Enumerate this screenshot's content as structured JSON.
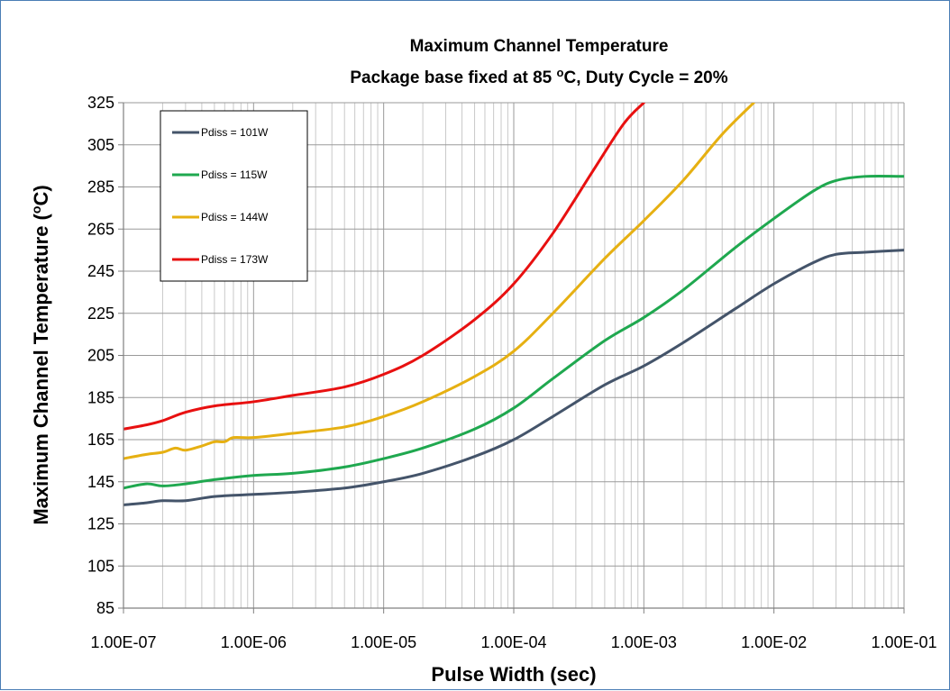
{
  "chart_data": {
    "type": "line",
    "title": "Maximum Channel Temperature",
    "subtitle_parts": {
      "before": "Package base fixed at 85 ",
      "sup": "o",
      "after": "C, Duty Cycle = 20%"
    },
    "xlabel": "Pulse Width (sec)",
    "ylabel_parts": {
      "before": "Maximum Channel Temperature (",
      "sup": "o",
      "after": "C)"
    },
    "x_scale": "log",
    "xlim": [
      1e-07,
      0.1
    ],
    "ylim": [
      85,
      325
    ],
    "x_ticks": [
      "1.00E-07",
      "1.00E-06",
      "1.00E-05",
      "1.00E-04",
      "1.00E-03",
      "1.00E-02",
      "1.00E-01"
    ],
    "x_tick_values": [
      1e-07,
      1e-06,
      1e-05,
      0.0001,
      0.001,
      0.01,
      0.1
    ],
    "y_ticks": [
      85,
      105,
      125,
      145,
      165,
      185,
      205,
      225,
      245,
      265,
      285,
      305,
      325
    ],
    "grid": true,
    "legend_position": "top-left",
    "series": [
      {
        "name": "Pdiss = 101W",
        "color": "#44546a",
        "x": [
          1e-07,
          1.5e-07,
          2e-07,
          3e-07,
          5e-07,
          1e-06,
          2e-06,
          5e-06,
          1e-05,
          2e-05,
          5e-05,
          0.0001,
          0.0002,
          0.0005,
          0.001,
          0.002,
          0.005,
          0.01,
          0.02,
          0.03,
          0.05,
          0.1
        ],
        "y": [
          134,
          135,
          136,
          136,
          138,
          139,
          140,
          142,
          145,
          149,
          157,
          165,
          176,
          191,
          200,
          211,
          227,
          239,
          249,
          253,
          254,
          255
        ]
      },
      {
        "name": "Pdiss = 115W",
        "color": "#1fa84f",
        "x": [
          1e-07,
          1.5e-07,
          2e-07,
          3e-07,
          5e-07,
          1e-06,
          2e-06,
          5e-06,
          1e-05,
          2e-05,
          5e-05,
          0.0001,
          0.0002,
          0.0005,
          0.001,
          0.002,
          0.005,
          0.01,
          0.02,
          0.03,
          0.05,
          0.1
        ],
        "y": [
          142,
          144,
          143,
          144,
          146,
          148,
          149,
          152,
          156,
          161,
          170,
          180,
          194,
          212,
          223,
          236,
          256,
          270,
          283,
          288,
          290,
          290
        ]
      },
      {
        "name": "Pdiss = 144W",
        "color": "#e6b012",
        "x": [
          1e-07,
          1.5e-07,
          2e-07,
          2.5e-07,
          3e-07,
          4e-07,
          5e-07,
          6e-07,
          7e-07,
          1e-06,
          2e-06,
          5e-06,
          1e-05,
          2e-05,
          5e-05,
          0.0001,
          0.0002,
          0.0005,
          0.001,
          0.002,
          0.004,
          0.007
        ],
        "y": [
          156,
          158,
          159,
          161,
          160,
          162,
          164,
          164,
          166,
          166,
          168,
          171,
          176,
          183,
          195,
          207,
          225,
          251,
          269,
          288,
          310,
          325
        ]
      },
      {
        "name": "Pdiss = 173W",
        "color": "#e81010",
        "x": [
          1e-07,
          1.5e-07,
          2e-07,
          3e-07,
          5e-07,
          1e-06,
          2e-06,
          5e-06,
          1e-05,
          2e-05,
          5e-05,
          0.0001,
          0.0002,
          0.0004,
          0.0007,
          0.001
        ],
        "y": [
          170,
          172,
          174,
          178,
          181,
          183,
          186,
          190,
          196,
          205,
          222,
          239,
          263,
          292,
          315,
          325
        ]
      }
    ]
  }
}
